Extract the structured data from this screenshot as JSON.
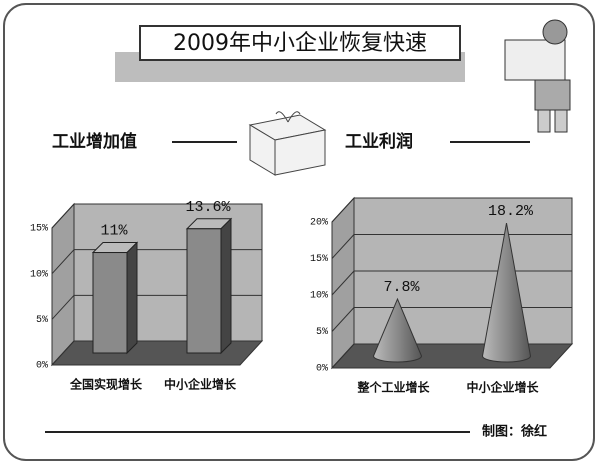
{
  "title": "2009年中小企业恢复快速",
  "credit": "制图：徐红",
  "chart_data": [
    {
      "type": "bar",
      "title": "工业增加值",
      "categories": [
        "全国实现增长",
        "中小企业增长"
      ],
      "values": [
        11,
        13.6
      ],
      "value_labels": [
        "11%",
        "13.6%"
      ],
      "color": "#8a8a8a",
      "ylim": [
        0,
        15
      ],
      "yticks": [
        {
          "value": 0,
          "label": "0%"
        },
        {
          "value": 5,
          "label": "5%"
        },
        {
          "value": 10,
          "label": "10%"
        },
        {
          "value": 15,
          "label": "15%"
        }
      ],
      "grid": true
    },
    {
      "type": "cone",
      "title": "工业利润",
      "categories": [
        "整个工业增长",
        "中小企业增长"
      ],
      "values": [
        7.8,
        18.2
      ],
      "value_labels": [
        "7.8%",
        "18.2%"
      ],
      "color": "#9a9a9a",
      "ylim": [
        0,
        20
      ],
      "yticks": [
        {
          "value": 0,
          "label": "0%"
        },
        {
          "value": 5,
          "label": "5%"
        },
        {
          "value": 10,
          "label": "10%"
        },
        {
          "value": 15,
          "label": "15%"
        },
        {
          "value": 20,
          "label": "20%"
        }
      ],
      "grid": true
    }
  ]
}
